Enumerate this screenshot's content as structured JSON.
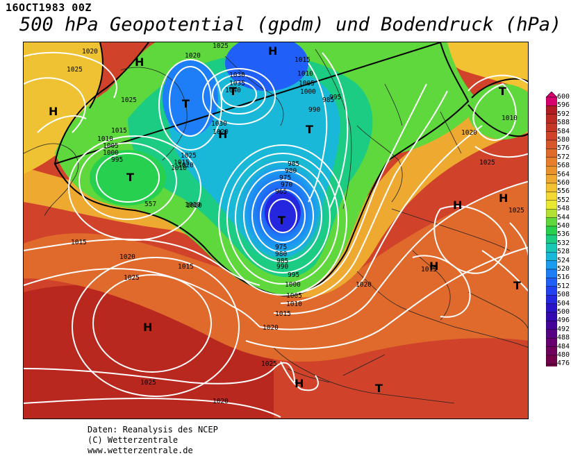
{
  "header": {
    "date": "16OCT1983 00Z",
    "title": "500 hPa Geopotential (gpdm) und Bodendruck (hPa)"
  },
  "credits": {
    "line1": "Daten: Reanalysis des NCEP",
    "line2": "(C) Wetterzentrale",
    "line3": "www.wetterzentrale.de"
  },
  "legend": {
    "levels": [
      "600",
      "596",
      "592",
      "588",
      "584",
      "580",
      "576",
      "572",
      "568",
      "564",
      "560",
      "556",
      "552",
      "548",
      "544",
      "540",
      "536",
      "532",
      "528",
      "524",
      "520",
      "516",
      "512",
      "508",
      "504",
      "500",
      "496",
      "492",
      "488",
      "484",
      "480",
      "476"
    ],
    "colors": [
      "#d6006e",
      "#b01a20",
      "#bc2a22",
      "#c63626",
      "#d0432a",
      "#d8562c",
      "#e06a2c",
      "#e67e2c",
      "#ea922e",
      "#eeaa30",
      "#f2c232",
      "#f4d834",
      "#e8e830",
      "#b4e034",
      "#5ed83c",
      "#28d050",
      "#1ccc82",
      "#18c8b4",
      "#1ab8d8",
      "#1c9cf0",
      "#1e7ef8",
      "#2060f8",
      "#2242f0",
      "#2426e0",
      "#2a12c8",
      "#3408b0",
      "#440498",
      "#560282",
      "#66006e",
      "#70005c",
      "#72004a",
      "#6a0040"
    ]
  },
  "map": {
    "pressure_labels": [
      "1025",
      "1020",
      "1025",
      "1020",
      "1015",
      "1010",
      "1005",
      "1000",
      "995",
      "990",
      "985",
      "1035",
      "1030",
      "1040",
      "1025",
      "1030",
      "1020",
      "1015",
      "1010",
      "1025",
      "1020",
      "1005",
      "1000",
      "995",
      "1010",
      "1015",
      "1010",
      "985",
      "980",
      "975",
      "970",
      "965",
      "975",
      "980",
      "985",
      "990",
      "995",
      "1000",
      "1005",
      "1010",
      "1015",
      "1020",
      "1020",
      "1015",
      "1010",
      "1020",
      "1025",
      "1025",
      "1025",
      "1020",
      "1025",
      "1025",
      "1015",
      "1020",
      "1010",
      "1015",
      "557"
    ],
    "centers": [
      "H",
      "H",
      "H",
      "T",
      "T",
      "T",
      "T",
      "T",
      "H",
      "H",
      "H",
      "T",
      "H",
      "H",
      "T",
      "H",
      "T"
    ]
  }
}
